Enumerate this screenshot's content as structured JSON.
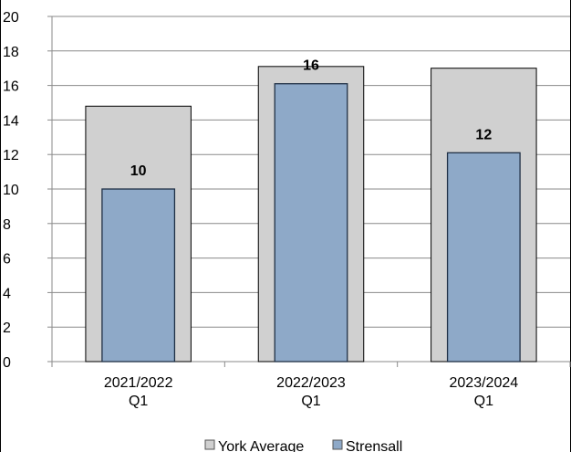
{
  "chart_data": {
    "type": "bar",
    "categories": [
      [
        "2021/2022",
        "Q1"
      ],
      [
        "2022/2023",
        "Q1"
      ],
      [
        "2023/2024",
        "Q1"
      ]
    ],
    "series": [
      {
        "name": "York Average",
        "values": [
          14.8,
          17.1,
          17.0
        ],
        "color": "#d0d0d0"
      },
      {
        "name": "Strensall",
        "values": [
          10,
          16.1,
          12.1
        ],
        "color": "#8ea9c8"
      }
    ],
    "data_labels": [
      "10",
      "16",
      "12"
    ],
    "yticks": [
      "0",
      "2",
      "4",
      "6",
      "8",
      "10",
      "12",
      "14",
      "16",
      "18",
      "20"
    ],
    "ylim": [
      0,
      20
    ],
    "grid": true,
    "legend_position": "bottom"
  }
}
